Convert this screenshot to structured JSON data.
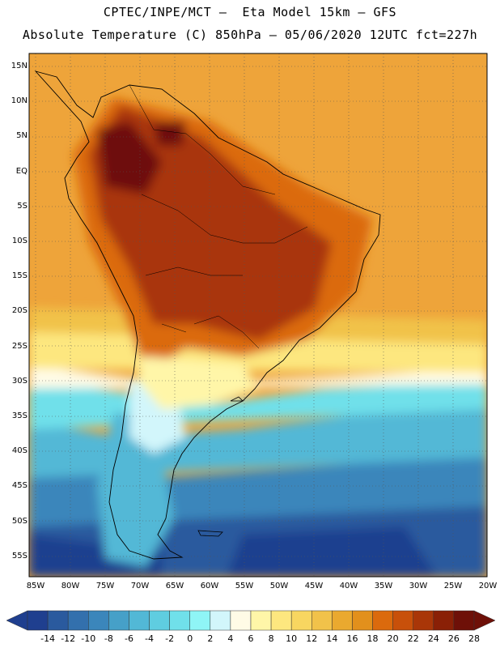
{
  "title": {
    "line1": "CPTEC/INPE/MCT –  Eta Model 15km – GFS",
    "line2": "Absolute Temperature (C) 850hPa – 05/06/2020 12UTC fct=227h"
  },
  "lat_labels": [
    "15N",
    "10N",
    "5N",
    "EQ",
    "5S",
    "10S",
    "15S",
    "20S",
    "25S",
    "30S",
    "35S",
    "40S",
    "45S",
    "50S",
    "55S"
  ],
  "lon_labels": [
    "85W",
    "80W",
    "75W",
    "70W",
    "65W",
    "60W",
    "55W",
    "50W",
    "45W",
    "40W",
    "35W",
    "30W",
    "25W",
    "20W"
  ],
  "colorbar": {
    "labels": [
      "-14",
      "-12",
      "-10",
      "-8",
      "-6",
      "-4",
      "-2",
      "0",
      "2",
      "4",
      "6",
      "8",
      "10",
      "12",
      "14",
      "16",
      "18",
      "20",
      "22",
      "24",
      "26",
      "28"
    ],
    "colors": [
      "#1f3f8f",
      "#2a5a9e",
      "#3370ad",
      "#3b86bb",
      "#46a0c8",
      "#52b8d6",
      "#5fcde0",
      "#70e0ea",
      "#8ff5f6",
      "#d2f6fb",
      "#fffbe6",
      "#fff6a8",
      "#fde77f",
      "#f8d660",
      "#f1c24a",
      "#eaa92f",
      "#e2901c",
      "#db6a0d",
      "#c8500a",
      "#a93608",
      "#8a2006",
      "#6e1008"
    ]
  }
}
